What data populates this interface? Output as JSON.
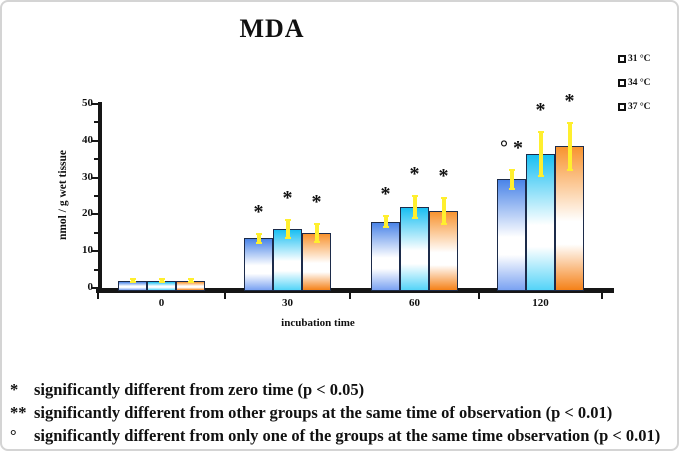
{
  "title": "MDA",
  "chart_data": {
    "type": "bar",
    "title": "MDA",
    "xlabel": "incubation time",
    "ylabel": "nmol / g wet tissue",
    "ylim": [
      0,
      50
    ],
    "ytick_major": 10,
    "ytick_minor": 5,
    "grid": false,
    "legend_position": "top-right",
    "error_bar_color": "#ffef2e",
    "categories": [
      "0",
      "30",
      "60",
      "120"
    ],
    "series": [
      {
        "name": "31 °C",
        "color_top": "#4a84e8",
        "color_bottom": "#7aa2f2",
        "values": [
          2,
          13.5,
          18,
          29.5
        ],
        "errors": [
          0.5,
          1.3,
          1.5,
          2.5
        ],
        "annotations": [
          "",
          "*",
          "*",
          "° *"
        ]
      },
      {
        "name": "34 °C",
        "color_top": "#19bff2",
        "color_bottom": "#54d4f8",
        "values": [
          2,
          16,
          22,
          36.5
        ],
        "errors": [
          0.5,
          2.5,
          3,
          6
        ],
        "annotations": [
          "",
          "*",
          "*",
          "*"
        ]
      },
      {
        "name": "37 °C",
        "color_top": "#f8932f",
        "color_bottom": "#f58118",
        "values": [
          2,
          15,
          21,
          38.5
        ],
        "errors": [
          0.5,
          2.5,
          3.5,
          6.3
        ],
        "annotations": [
          "",
          "*",
          "*",
          "*"
        ]
      }
    ]
  },
  "footnotes": [
    {
      "symbol": "*",
      "text": "significantly different from zero time (p < 0.05)"
    },
    {
      "symbol": "**",
      "text": "significantly different from other groups at the same time of observation (p < 0.01)"
    },
    {
      "symbol": "°",
      "text": "significantly different from only one of the groups at the same time observation (p < 0.01)"
    }
  ]
}
